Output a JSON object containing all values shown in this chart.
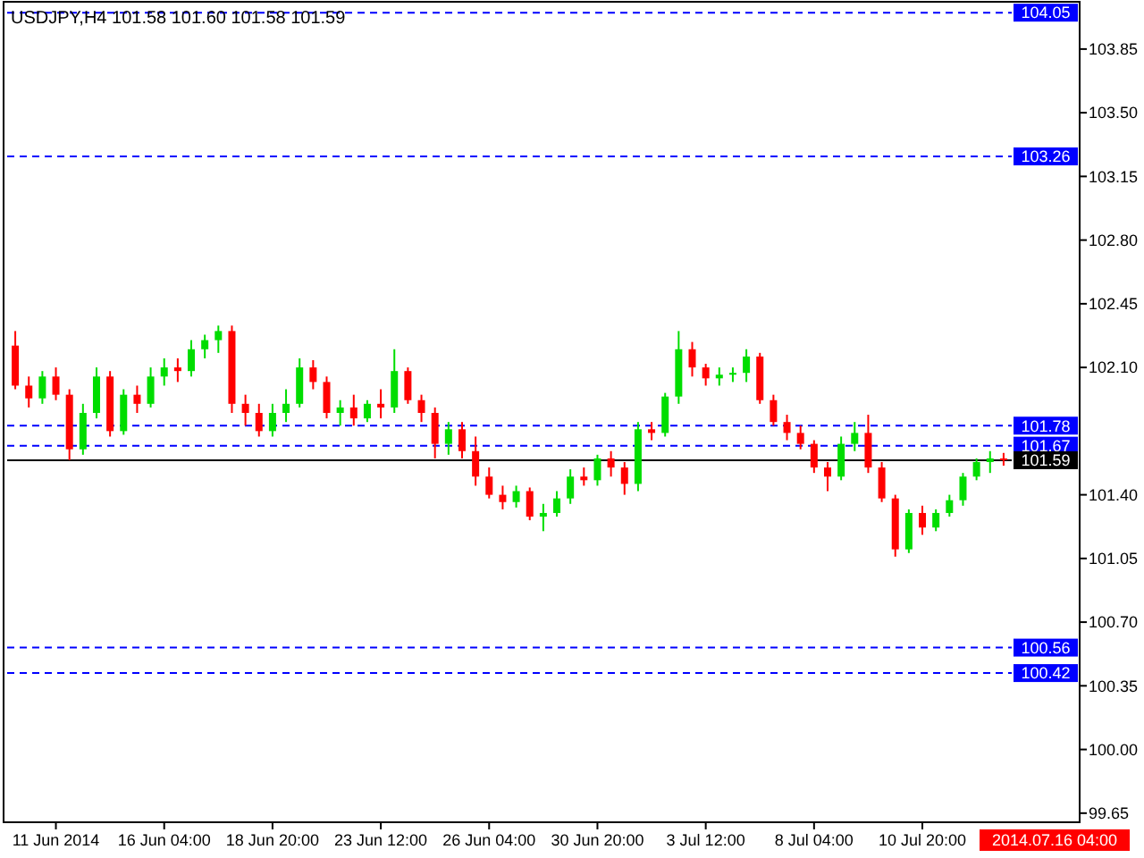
{
  "chart_data": {
    "type": "candlestick",
    "title": "USDJPY,H4  101.58 101.60 101.58 101.59",
    "categories": [
      null,
      null,
      null,
      "11 Jun 2014",
      null,
      null,
      null,
      null,
      null,
      null,
      null,
      "16 Jun 04:00",
      null,
      null,
      null,
      null,
      null,
      null,
      null,
      "18 Jun 20:00",
      null,
      null,
      null,
      null,
      null,
      null,
      null,
      "23 Jun 12:00",
      null,
      null,
      null,
      null,
      null,
      null,
      null,
      "26 Jun 04:00",
      null,
      null,
      null,
      null,
      null,
      null,
      null,
      "30 Jun 20:00",
      null,
      null,
      null,
      null,
      null,
      null,
      null,
      "3 Jul 12:00",
      null,
      null,
      null,
      null,
      null,
      null,
      null,
      "8 Jul 04:00",
      null,
      null,
      null,
      null,
      null,
      null,
      null,
      "10 Jul 20:00",
      null,
      null,
      null,
      null,
      null,
      null
    ],
    "ohlc": [
      [
        102.22,
        102.3,
        101.98,
        102.0
      ],
      [
        102.0,
        102.05,
        101.88,
        101.93
      ],
      [
        101.93,
        102.08,
        101.9,
        102.05
      ],
      [
        102.05,
        102.1,
        101.92,
        101.95
      ],
      [
        101.95,
        101.98,
        101.59,
        101.65
      ],
      [
        101.65,
        101.9,
        101.62,
        101.85
      ],
      [
        101.85,
        102.1,
        101.82,
        102.05
      ],
      [
        102.05,
        102.08,
        101.72,
        101.75
      ],
      [
        101.75,
        101.98,
        101.73,
        101.95
      ],
      [
        101.95,
        102.0,
        101.85,
        101.9
      ],
      [
        101.9,
        102.1,
        101.88,
        102.05
      ],
      [
        102.05,
        102.15,
        102.0,
        102.1
      ],
      [
        102.1,
        102.15,
        102.02,
        102.08
      ],
      [
        102.08,
        102.25,
        102.05,
        102.2
      ],
      [
        102.2,
        102.28,
        102.15,
        102.25
      ],
      [
        102.25,
        102.33,
        102.18,
        102.3
      ],
      [
        102.3,
        102.33,
        101.85,
        101.9
      ],
      [
        101.9,
        101.95,
        101.78,
        101.85
      ],
      [
        101.85,
        101.9,
        101.72,
        101.75
      ],
      [
        101.75,
        101.9,
        101.72,
        101.85
      ],
      [
        101.85,
        101.98,
        101.8,
        101.9
      ],
      [
        101.9,
        102.15,
        101.88,
        102.1
      ],
      [
        102.1,
        102.14,
        101.98,
        102.02
      ],
      [
        102.02,
        102.05,
        101.82,
        101.85
      ],
      [
        101.85,
        101.92,
        101.78,
        101.88
      ],
      [
        101.88,
        101.95,
        101.78,
        101.82
      ],
      [
        101.82,
        101.92,
        101.8,
        101.9
      ],
      [
        101.9,
        101.98,
        101.82,
        101.88
      ],
      [
        101.88,
        102.2,
        101.85,
        102.08
      ],
      [
        102.08,
        102.1,
        101.9,
        101.92
      ],
      [
        101.92,
        101.95,
        101.8,
        101.85
      ],
      [
        101.85,
        101.88,
        101.6,
        101.68
      ],
      [
        101.68,
        101.8,
        101.62,
        101.76
      ],
      [
        101.76,
        101.8,
        101.6,
        101.64
      ],
      [
        101.64,
        101.72,
        101.45,
        101.5
      ],
      [
        101.5,
        101.55,
        101.38,
        101.4
      ],
      [
        101.4,
        101.45,
        101.32,
        101.36
      ],
      [
        101.36,
        101.45,
        101.33,
        101.42
      ],
      [
        101.42,
        101.44,
        101.26,
        101.28
      ],
      [
        101.28,
        101.35,
        101.2,
        101.3
      ],
      [
        101.3,
        101.42,
        101.28,
        101.38
      ],
      [
        101.38,
        101.54,
        101.35,
        101.5
      ],
      [
        101.5,
        101.55,
        101.45,
        101.48
      ],
      [
        101.48,
        101.62,
        101.45,
        101.6
      ],
      [
        101.6,
        101.64,
        101.5,
        101.55
      ],
      [
        101.55,
        101.58,
        101.4,
        101.46
      ],
      [
        101.46,
        101.8,
        101.42,
        101.76
      ],
      [
        101.76,
        101.8,
        101.7,
        101.74
      ],
      [
        101.74,
        101.96,
        101.72,
        101.94
      ],
      [
        101.94,
        102.3,
        101.9,
        102.2
      ],
      [
        102.2,
        102.24,
        102.05,
        102.1
      ],
      [
        102.1,
        102.12,
        102.0,
        102.04
      ],
      [
        102.04,
        102.1,
        102.0,
        102.06
      ],
      [
        102.06,
        102.1,
        102.02,
        102.07
      ],
      [
        102.07,
        102.2,
        102.02,
        102.16
      ],
      [
        102.16,
        102.18,
        101.9,
        101.92
      ],
      [
        101.92,
        101.95,
        101.78,
        101.8
      ],
      [
        101.8,
        101.84,
        101.7,
        101.74
      ],
      [
        101.74,
        101.78,
        101.65,
        101.68
      ],
      [
        101.68,
        101.7,
        101.52,
        101.55
      ],
      [
        101.55,
        101.58,
        101.42,
        101.5
      ],
      [
        101.5,
        101.72,
        101.48,
        101.68
      ],
      [
        101.68,
        101.8,
        101.64,
        101.74
      ],
      [
        101.74,
        101.84,
        101.52,
        101.55
      ],
      [
        101.55,
        101.58,
        101.36,
        101.38
      ],
      [
        101.38,
        101.4,
        101.06,
        101.1
      ],
      [
        101.1,
        101.32,
        101.08,
        101.3
      ],
      [
        101.3,
        101.34,
        101.18,
        101.22
      ],
      [
        101.22,
        101.32,
        101.2,
        101.3
      ],
      [
        101.3,
        101.4,
        101.28,
        101.37
      ],
      [
        101.37,
        101.52,
        101.34,
        101.5
      ],
      [
        101.5,
        101.6,
        101.48,
        101.58
      ],
      [
        101.58,
        101.64,
        101.52,
        101.6
      ],
      [
        101.6,
        101.63,
        101.56,
        101.59
      ]
    ],
    "ylim": [
      99.6,
      104.1
    ],
    "yticks": [
      99.65,
      {
        "value": 100.0,
        "label": "100.00"
      },
      100.35,
      {
        "value": 100.7,
        "label": "100.70"
      },
      101.05,
      {
        "value": 101.4,
        "label": "101.40"
      },
      {
        "value": 102.1,
        "label": "102.10"
      },
      102.45,
      {
        "value": 102.8,
        "label": "102.80"
      },
      103.15,
      {
        "value": 103.5,
        "label": "103.50"
      },
      103.85
    ],
    "ref_lines": [
      {
        "axis": "y",
        "value": 104.05,
        "label": "104.05",
        "color": "#0000ff",
        "line_style": "dashed"
      },
      {
        "axis": "y",
        "value": 103.26,
        "label": "103.26",
        "color": "#0000ff",
        "line_style": "dashed"
      },
      {
        "axis": "y",
        "value": 101.78,
        "label": "101.78",
        "color": "#0000ff",
        "line_style": "dashed"
      },
      {
        "axis": "y",
        "value": 101.67,
        "label": "101.67",
        "color": "#0000ff",
        "line_style": "dashed"
      },
      {
        "axis": "y",
        "value": 101.59,
        "label": "101.59",
        "color": "#000000",
        "line_style": "solid"
      },
      {
        "axis": "y",
        "value": 100.56,
        "label": "100.56",
        "color": "#0000ff",
        "line_style": "dashed"
      },
      {
        "axis": "y",
        "value": 100.42,
        "label": "100.42",
        "color": "#0000ff",
        "line_style": "dashed"
      }
    ],
    "annotations": [
      "2014.07.16 04:00"
    ]
  }
}
